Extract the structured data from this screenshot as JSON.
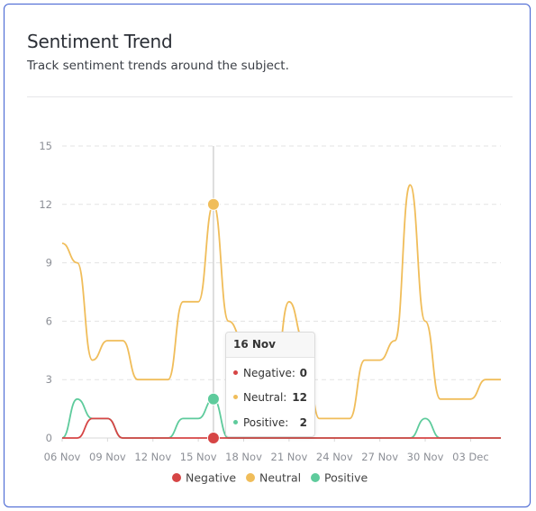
{
  "card": {
    "title": "Sentiment Trend",
    "subtitle": "Track sentiment trends around the subject."
  },
  "tooltip": {
    "date": "16 Nov",
    "rows": [
      {
        "label": "Negative:",
        "value": "0",
        "color": "#d64545"
      },
      {
        "label": "Neutral:",
        "value": "12",
        "color": "#f0bd5a"
      },
      {
        "label": "Positive:",
        "value": "2",
        "color": "#5ecb9c"
      }
    ]
  },
  "chart_data": {
    "type": "line",
    "x": [
      "06 Nov",
      "07 Nov",
      "08 Nov",
      "09 Nov",
      "10 Nov",
      "11 Nov",
      "12 Nov",
      "13 Nov",
      "14 Nov",
      "15 Nov",
      "16 Nov",
      "17 Nov",
      "18 Nov",
      "19 Nov",
      "20 Nov",
      "21 Nov",
      "22 Nov",
      "23 Nov",
      "24 Nov",
      "25 Nov",
      "26 Nov",
      "27 Nov",
      "28 Nov",
      "29 Nov",
      "30 Nov",
      "01 Dec",
      "02 Dec",
      "03 Dec",
      "04 Dec",
      "05 Dec"
    ],
    "x_tick_labels": [
      "06 Nov",
      "09 Nov",
      "12 Nov",
      "15 Nov",
      "18 Nov",
      "21 Nov",
      "24 Nov",
      "27 Nov",
      "30 Nov",
      "03 Dec"
    ],
    "y_tick_labels": [
      "0",
      "3",
      "6",
      "9",
      "12",
      "15"
    ],
    "ylim": [
      0,
      15
    ],
    "series": [
      {
        "name": "Negative",
        "color": "#d64545",
        "values": [
          0,
          0,
          1,
          1,
          0,
          0,
          0,
          0,
          0,
          0,
          0,
          0,
          0,
          0,
          0,
          0,
          0,
          0,
          0,
          0,
          0,
          0,
          0,
          0,
          0,
          0,
          0,
          0,
          0,
          0
        ]
      },
      {
        "name": "Neutral",
        "color": "#f0bd5a",
        "values": [
          10,
          9,
          4,
          5,
          5,
          3,
          3,
          3,
          7,
          7,
          12,
          6,
          5,
          3,
          3,
          7,
          5,
          1,
          1,
          1,
          4,
          4,
          5,
          13,
          6,
          2,
          2,
          2,
          3,
          3
        ]
      },
      {
        "name": "Positive",
        "color": "#5ecb9c",
        "values": [
          0,
          2,
          1,
          1,
          0,
          0,
          0,
          0,
          1,
          1,
          2,
          0,
          0,
          0,
          0,
          0,
          0,
          0,
          0,
          0,
          0,
          0,
          0,
          0,
          1,
          0,
          0,
          0,
          0,
          0
        ]
      }
    ],
    "highlight_index": 10,
    "grid": "horizontal-dashed",
    "legend_position": "bottom"
  }
}
